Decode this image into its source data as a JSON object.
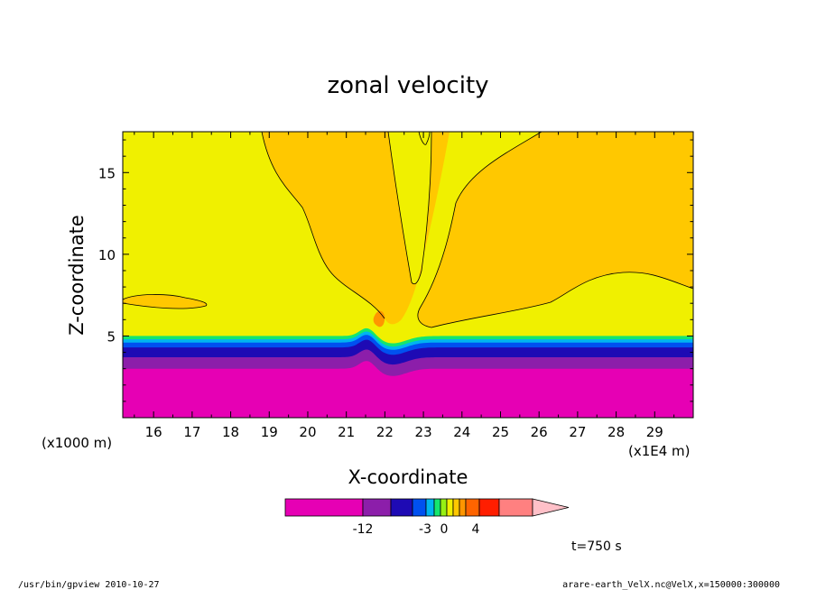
{
  "chart_data": {
    "type": "heatmap",
    "title": "zonal velocity",
    "xlabel": "X-coordinate",
    "ylabel": "Z-coordinate",
    "x_unit_label": "(x1E4 m)",
    "y_unit_label": "(x1000 m)",
    "xlim": [
      15.2,
      30.0
    ],
    "ylim": [
      0.0,
      17.5
    ],
    "x_ticks": [
      16,
      17,
      18,
      19,
      20,
      21,
      22,
      23,
      24,
      25,
      26,
      27,
      28,
      29
    ],
    "y_ticks": [
      5,
      10,
      15
    ],
    "colorbar": {
      "labels": [
        "-12",
        "-3",
        "0",
        "4"
      ],
      "bins": [
        {
          "color": "#e600b4"
        },
        {
          "color": "#8c1eaa"
        },
        {
          "color": "#1e0ab4"
        },
        {
          "color": "#0050f0"
        },
        {
          "color": "#00b4f0"
        },
        {
          "color": "#14e66e"
        },
        {
          "color": "#96f014"
        },
        {
          "color": "#f0f000"
        },
        {
          "color": "#ffc800"
        },
        {
          "color": "#ff9600"
        },
        {
          "color": "#ff6400"
        },
        {
          "color": "#ff1e00"
        },
        {
          "color": "#ff8080"
        },
        {
          "color": "#ffc0c8"
        }
      ]
    },
    "fields": {
      "background_color": "#f0f000",
      "orange_color": "#ffc800",
      "darkorange_color": "#ff9600",
      "layers": [
        {
          "name": "magenta",
          "color": "#e600b4",
          "z_top": 3.0
        },
        {
          "name": "purple",
          "color": "#8c1eaa",
          "z_top": 3.7
        },
        {
          "name": "darkblue",
          "color": "#1e0ab4",
          "z_top": 4.3
        },
        {
          "name": "blue",
          "color": "#0050f0",
          "z_top": 4.6
        },
        {
          "name": "cyan",
          "color": "#00b4f0",
          "z_top": 4.8
        },
        {
          "name": "green",
          "color": "#14e66e",
          "z_top": 5.0
        }
      ]
    },
    "time_label": "t=750 s"
  },
  "footer": {
    "left": "/usr/bin/gpview  2010-10-27",
    "right": "arare-earth_VelX.nc@VelX,x=150000:300000"
  }
}
